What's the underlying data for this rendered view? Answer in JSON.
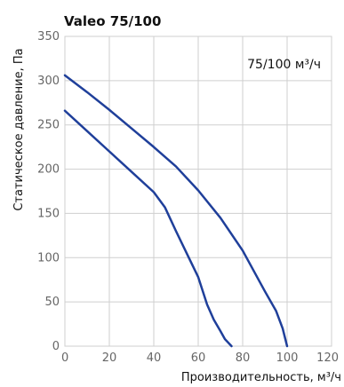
{
  "chart_data": {
    "type": "line",
    "title": "Valeo 75/100",
    "annotation": "75/100 м³/ч",
    "xlabel": "Производительность, м³/ч",
    "ylabel": "Статическое давление, Па",
    "xlim": [
      0,
      120
    ],
    "ylim": [
      0,
      350
    ],
    "xticks": [
      0,
      20,
      40,
      60,
      80,
      100,
      120
    ],
    "yticks": [
      0,
      50,
      100,
      150,
      200,
      250,
      300,
      350
    ],
    "grid": true,
    "colors": {
      "series": "#1f3f9a",
      "grid": "#cfcfcf",
      "tick_labels": "#666666"
    },
    "series": [
      {
        "points": [
          {
            "x": 0,
            "y": 266
          },
          {
            "x": 10,
            "y": 243
          },
          {
            "x": 20,
            "y": 220
          },
          {
            "x": 30,
            "y": 197
          },
          {
            "x": 40,
            "y": 174
          },
          {
            "x": 45,
            "y": 157
          },
          {
            "x": 50,
            "y": 130
          },
          {
            "x": 55,
            "y": 104
          },
          {
            "x": 60,
            "y": 78
          },
          {
            "x": 64,
            "y": 47
          },
          {
            "x": 67,
            "y": 30
          },
          {
            "x": 70,
            "y": 17
          },
          {
            "x": 72,
            "y": 8
          },
          {
            "x": 75,
            "y": 0
          }
        ]
      },
      {
        "points": [
          {
            "x": 0,
            "y": 306
          },
          {
            "x": 10,
            "y": 287
          },
          {
            "x": 20,
            "y": 267
          },
          {
            "x": 30,
            "y": 246
          },
          {
            "x": 40,
            "y": 225
          },
          {
            "x": 50,
            "y": 203
          },
          {
            "x": 60,
            "y": 176
          },
          {
            "x": 70,
            "y": 145
          },
          {
            "x": 80,
            "y": 108
          },
          {
            "x": 90,
            "y": 62
          },
          {
            "x": 95,
            "y": 40
          },
          {
            "x": 98,
            "y": 20
          },
          {
            "x": 100,
            "y": 0
          }
        ]
      }
    ]
  }
}
